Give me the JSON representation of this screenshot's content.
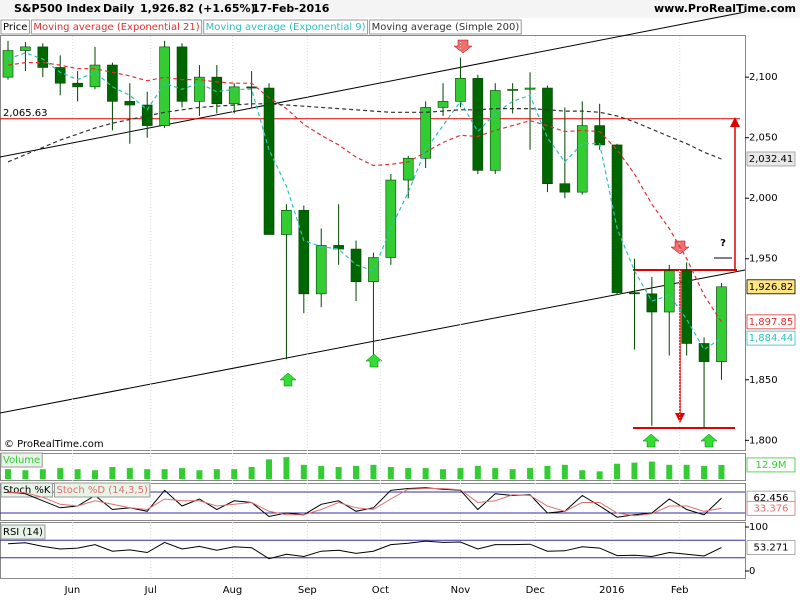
{
  "header": {
    "symbol": "S&P500 Index",
    "period": "Daily",
    "price": "1,926.82 (+1.65%)",
    "date": "17-Feb-2016",
    "site": "www.ProRealTime.com",
    "copyright": "© ProRealTime.com"
  },
  "chart_data": [
    {
      "type": "candlestick",
      "xlim": [
        -0.46,
        42.64
      ],
      "xticks": [
        {
          "value": 3.7,
          "label": "Jun"
        },
        {
          "value": 8.2,
          "label": "Jul"
        },
        {
          "value": 12.9,
          "label": "Aug"
        },
        {
          "value": 17.2,
          "label": "Sep"
        },
        {
          "value": 21.4,
          "label": "Oct"
        },
        {
          "value": 26.0,
          "label": "Nov"
        },
        {
          "value": 30.3,
          "label": "Dec"
        },
        {
          "value": 34.7,
          "label": "2016"
        },
        {
          "value": 38.6,
          "label": "Feb"
        }
      ],
      "ylim": [
        1792,
        2134
      ],
      "yticks": [
        {
          "value": 1800,
          "label": "1,800"
        },
        {
          "value": 1850,
          "label": "1,850"
        },
        {
          "value": 1950,
          "label": "1,950"
        },
        {
          "value": 2000,
          "label": "2,000"
        },
        {
          "value": 2050,
          "label": "2,050"
        },
        {
          "value": 2100,
          "label": "2,100"
        }
      ],
      "hlines": [
        {
          "value": 2065.63,
          "label": "2,065.63",
          "color": "#e00000"
        }
      ],
      "annotations": [
        {
          "text": "?"
        }
      ],
      "series": [
        {
          "name": "Price",
          "type": "candlestick",
          "up_color": "#33cc33",
          "down_color": "#006600",
          "tag_color": "#ffe680",
          "values": [
            [
              2100,
              2130,
              2098,
              2122
            ],
            [
              2122,
              2129,
              2105,
              2125
            ],
            [
              2125,
              2128,
              2100,
              2108
            ],
            [
              2108,
              2118,
              2085,
              2095
            ],
            [
              2095,
              2105,
              2080,
              2092
            ],
            [
              2092,
              2125,
              2090,
              2110
            ],
            [
              2110,
              2112,
              2056,
              2080
            ],
            [
              2080,
              2095,
              2045,
              2077
            ],
            [
              2077,
              2088,
              2050,
              2060
            ],
            [
              2060,
              2130,
              2058,
              2125
            ],
            [
              2125,
              2128,
              2075,
              2080
            ],
            [
              2080,
              2110,
              2068,
              2100
            ],
            [
              2100,
              2110,
              2070,
              2078
            ],
            [
              2078,
              2095,
              2070,
              2092
            ],
            [
              2092,
              2105,
              2075,
              2091
            ],
            [
              2091,
              2095,
              1970,
              1970
            ],
            [
              1970,
              1995,
              1867,
              1990
            ],
            [
              1990,
              1994,
              1905,
              1921
            ],
            [
              1921,
              1975,
              1910,
              1961
            ],
            [
              1961,
              1995,
              1945,
              1958
            ],
            [
              1958,
              1965,
              1915,
              1931
            ],
            [
              1931,
              1955,
              1871,
              1951
            ],
            [
              1951,
              2020,
              1945,
              2015
            ],
            [
              2015,
              2035,
              2000,
              2033
            ],
            [
              2033,
              2080,
              2025,
              2075
            ],
            [
              2075,
              2095,
              2068,
              2080
            ],
            [
              2080,
              2116,
              2075,
              2099
            ],
            [
              2099,
              2102,
              2020,
              2023
            ],
            [
              2023,
              2095,
              2020,
              2089
            ],
            [
              2089,
              2095,
              2070,
              2090
            ],
            [
              2090,
              2104,
              2040,
              2091
            ],
            [
              2091,
              2093,
              2005,
              2012
            ],
            [
              2012,
              2075,
              2000,
              2005
            ],
            [
              2005,
              2080,
              2003,
              2060
            ],
            [
              2060,
              2078,
              2040,
              2044
            ],
            [
              2044,
              2045,
              1920,
              1922
            ],
            [
              1922,
              1950,
              1875,
              1921
            ],
            [
              1921,
              1935,
              1812,
              1906
            ],
            [
              1906,
              1945,
              1870,
              1940
            ],
            [
              1940,
              1947,
              1870,
              1880
            ],
            [
              1880,
              1885,
              1810,
              1865
            ],
            [
              1865,
              1930,
              1850,
              1926.82
            ]
          ],
          "value_labels": [
            null,
            null,
            null,
            null,
            null,
            null,
            null,
            null,
            null,
            null,
            null,
            null,
            null,
            null,
            null,
            null,
            null,
            null,
            null,
            null,
            null,
            null,
            null,
            null,
            null,
            null,
            null,
            null,
            null,
            null,
            null,
            null,
            null,
            null,
            null,
            null,
            null,
            null,
            null,
            null,
            null,
            "1,926.82"
          ]
        },
        {
          "name": "Moving average (Exponential 21)",
          "type": "line",
          "color": "#e03030",
          "tag_color": "#ffffff",
          "values": [
            2110,
            2112,
            2112,
            2110,
            2107,
            2107,
            2104,
            2101,
            2097,
            2100,
            2098,
            2098,
            2096,
            2095,
            2095,
            2083,
            2074,
            2061,
            2052,
            2044,
            2034,
            2027,
            2028,
            2030,
            2038,
            2046,
            2052,
            2051,
            2056,
            2060,
            2064,
            2060,
            2055,
            2056,
            2055,
            2040,
            2020,
            1995,
            1975,
            1950,
            1920,
            1897.85
          ],
          "value_labels": [
            null,
            null,
            null,
            null,
            null,
            null,
            null,
            null,
            null,
            null,
            null,
            null,
            null,
            null,
            null,
            null,
            null,
            null,
            null,
            null,
            null,
            null,
            null,
            null,
            null,
            null,
            null,
            null,
            null,
            null,
            null,
            null,
            null,
            null,
            null,
            null,
            null,
            null,
            null,
            null,
            null,
            "1,897.85"
          ]
        },
        {
          "name": "Moving average (Exponential 9)",
          "type": "line",
          "color": "#30c0c0",
          "tag_color": "#ffffff",
          "values": [
            2115,
            2120,
            2115,
            2104,
            2098,
            2104,
            2092,
            2085,
            2073,
            2095,
            2090,
            2095,
            2088,
            2090,
            2090,
            2040,
            2010,
            1965,
            1960,
            1958,
            1945,
            1940,
            1975,
            2005,
            2040,
            2060,
            2080,
            2055,
            2070,
            2080,
            2085,
            2050,
            2030,
            2045,
            2045,
            1975,
            1940,
            1915,
            1920,
            1900,
            1875,
            1884.44
          ],
          "value_labels": [
            null,
            null,
            null,
            null,
            null,
            null,
            null,
            null,
            null,
            null,
            null,
            null,
            null,
            null,
            null,
            null,
            null,
            null,
            null,
            null,
            null,
            null,
            null,
            null,
            null,
            null,
            null,
            null,
            null,
            null,
            null,
            null,
            null,
            null,
            null,
            null,
            null,
            null,
            null,
            null,
            null,
            "1,884.44"
          ]
        },
        {
          "name": "Moving average (Simple 200)",
          "type": "line",
          "color": "#333333",
          "tag_color": "#e8e8e8",
          "values": [
            2030,
            2036,
            2042,
            2048,
            2053,
            2058,
            2062,
            2065,
            2068,
            2071,
            2073,
            2075,
            2076,
            2077,
            2078,
            2078,
            2077,
            2076,
            2075,
            2074,
            2073,
            2072,
            2071,
            2071,
            2071,
            2072,
            2073,
            2073,
            2074,
            2074,
            2074,
            2073,
            2072,
            2072,
            2071,
            2068,
            2063,
            2057,
            2051,
            2045,
            2038,
            2032.41
          ],
          "value_labels": [
            null,
            null,
            null,
            null,
            null,
            null,
            null,
            null,
            null,
            null,
            null,
            null,
            null,
            null,
            null,
            null,
            null,
            null,
            null,
            null,
            null,
            null,
            null,
            null,
            null,
            null,
            null,
            null,
            null,
            null,
            null,
            null,
            null,
            null,
            null,
            null,
            null,
            null,
            null,
            null,
            null,
            "2,032.41"
          ]
        }
      ]
    },
    {
      "type": "bar",
      "ylim": [
        0,
        22
      ],
      "series": [
        {
          "name": "Volume",
          "color": "#33cc33",
          "tag_color": "#ffffff",
          "values": [
            9,
            8,
            9,
            10,
            9,
            8,
            11,
            10,
            9,
            9,
            10,
            8,
            9,
            9,
            11,
            18,
            20,
            13,
            12,
            11,
            12,
            13,
            11,
            10,
            10,
            9,
            10,
            12,
            10,
            9,
            10,
            12,
            13,
            8,
            7,
            14,
            15,
            16,
            13,
            13,
            12,
            12.9
          ],
          "value_labels": [
            null,
            null,
            null,
            null,
            null,
            null,
            null,
            null,
            null,
            null,
            null,
            null,
            null,
            null,
            null,
            null,
            null,
            null,
            null,
            null,
            null,
            null,
            null,
            null,
            null,
            null,
            null,
            null,
            null,
            null,
            null,
            null,
            null,
            null,
            null,
            null,
            null,
            null,
            null,
            null,
            null,
            "12.9M"
          ]
        }
      ]
    },
    {
      "type": "line",
      "ylim": [
        0,
        100
      ],
      "levels": [
        20,
        80
      ],
      "series": [
        {
          "name": "Stoch %K",
          "color": "#000000",
          "tag_color": "#ffffff",
          "values": [
            80,
            75,
            55,
            35,
            40,
            70,
            30,
            35,
            25,
            85,
            40,
            60,
            30,
            55,
            50,
            10,
            20,
            15,
            45,
            55,
            25,
            35,
            85,
            90,
            92,
            88,
            85,
            30,
            75,
            70,
            72,
            20,
            25,
            70,
            40,
            8,
            15,
            20,
            60,
            30,
            15,
            62.456
          ]
        },
        {
          "name": "Stoch %D (14,3,5)",
          "color": "#e07070",
          "tag_color": "#ffffff",
          "values": [
            78,
            78,
            65,
            45,
            40,
            55,
            45,
            35,
            30,
            60,
            55,
            55,
            40,
            45,
            50,
            25,
            15,
            15,
            30,
            50,
            35,
            30,
            60,
            88,
            90,
            90,
            86,
            50,
            55,
            72,
            70,
            40,
            25,
            50,
            50,
            20,
            12,
            18,
            40,
            40,
            25,
            33.376
          ]
        }
      ]
    },
    {
      "type": "line",
      "ylim": [
        0,
        100
      ],
      "yticks": [
        0,
        100
      ],
      "levels": [
        30,
        70
      ],
      "series": [
        {
          "name": "RSI (14)",
          "color": "#000000",
          "tag_color": "#ffffff",
          "values": [
            62,
            64,
            56,
            50,
            52,
            60,
            45,
            48,
            42,
            65,
            50,
            56,
            47,
            55,
            53,
            28,
            38,
            33,
            45,
            47,
            40,
            45,
            60,
            63,
            68,
            65,
            66,
            50,
            60,
            60,
            61,
            45,
            46,
            55,
            52,
            35,
            36,
            33,
            42,
            38,
            34,
            53.271
          ]
        }
      ]
    }
  ]
}
